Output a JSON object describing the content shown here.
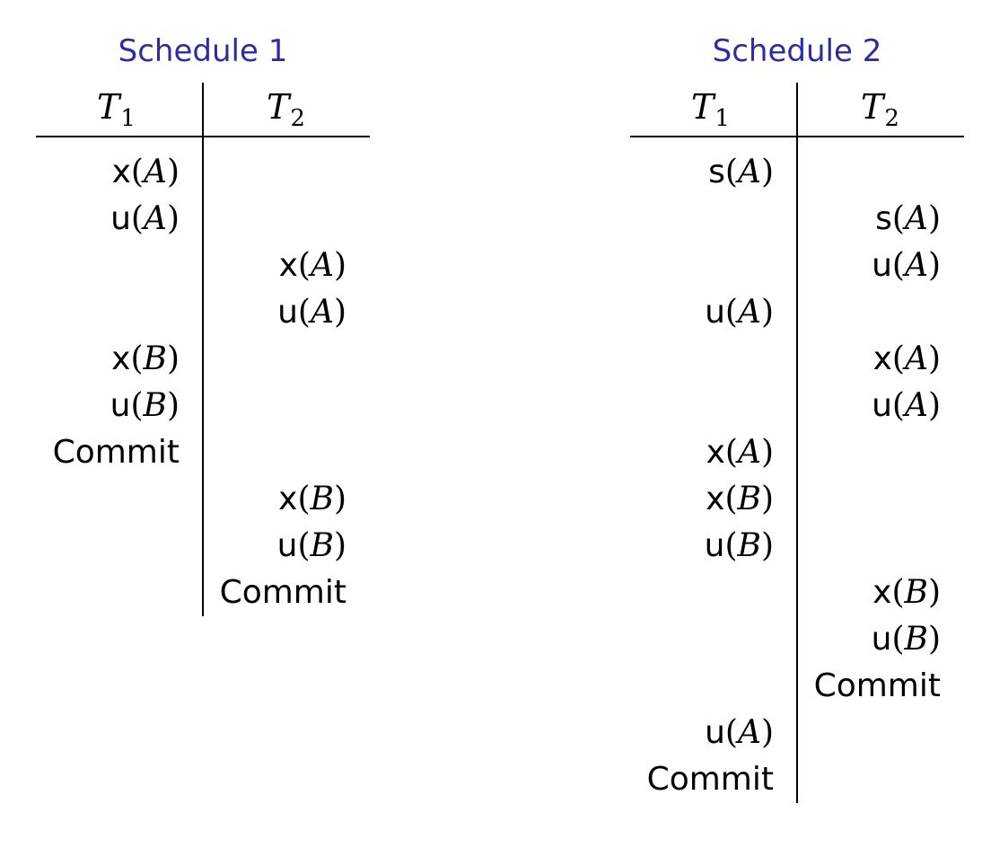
{
  "schedule1": {
    "title": "Schedule 1",
    "headers": [
      {
        "base": "T",
        "sub": "1"
      },
      {
        "base": "T",
        "sub": "2"
      }
    ],
    "ops": [
      {
        "fn": "x",
        "open": "(",
        "arg": "A",
        "close": ")"
      },
      {
        "fn": "u",
        "open": "(",
        "arg": "A",
        "close": ")"
      },
      {
        "fn": "x",
        "open": "(",
        "arg": "A",
        "close": ")"
      },
      {
        "fn": "u",
        "open": "(",
        "arg": "A",
        "close": ")"
      },
      {
        "fn": "x",
        "open": "(",
        "arg": "B",
        "close": ")"
      },
      {
        "fn": "u",
        "open": "(",
        "arg": "B",
        "close": ")"
      },
      {
        "fn": "Commit",
        "open": "",
        "arg": "",
        "close": ""
      },
      {
        "fn": "x",
        "open": "(",
        "arg": "B",
        "close": ")"
      },
      {
        "fn": "u",
        "open": "(",
        "arg": "B",
        "close": ")"
      },
      {
        "fn": "Commit",
        "open": "",
        "arg": "",
        "close": ""
      }
    ]
  },
  "schedule2": {
    "title": "Schedule 2",
    "headers": [
      {
        "base": "T",
        "sub": "1"
      },
      {
        "base": "T",
        "sub": "2"
      }
    ],
    "ops": [
      {
        "fn": "s",
        "open": "(",
        "arg": "A",
        "close": ")"
      },
      {
        "fn": "s",
        "open": "(",
        "arg": "A",
        "close": ")"
      },
      {
        "fn": "u",
        "open": "(",
        "arg": "A",
        "close": ")"
      },
      {
        "fn": "u",
        "open": "(",
        "arg": "A",
        "close": ")"
      },
      {
        "fn": "x",
        "open": "(",
        "arg": "A",
        "close": ")"
      },
      {
        "fn": "u",
        "open": "(",
        "arg": "A",
        "close": ")"
      },
      {
        "fn": "x",
        "open": "(",
        "arg": "A",
        "close": ")"
      },
      {
        "fn": "x",
        "open": "(",
        "arg": "B",
        "close": ")"
      },
      {
        "fn": "u",
        "open": "(",
        "arg": "B",
        "close": ")"
      },
      {
        "fn": "x",
        "open": "(",
        "arg": "B",
        "close": ")"
      },
      {
        "fn": "u",
        "open": "(",
        "arg": "B",
        "close": ")"
      },
      {
        "fn": "Commit",
        "open": "",
        "arg": "",
        "close": ""
      },
      {
        "fn": "u",
        "open": "(",
        "arg": "A",
        "close": ")"
      },
      {
        "fn": "Commit",
        "open": "",
        "arg": "",
        "close": ""
      }
    ]
  }
}
